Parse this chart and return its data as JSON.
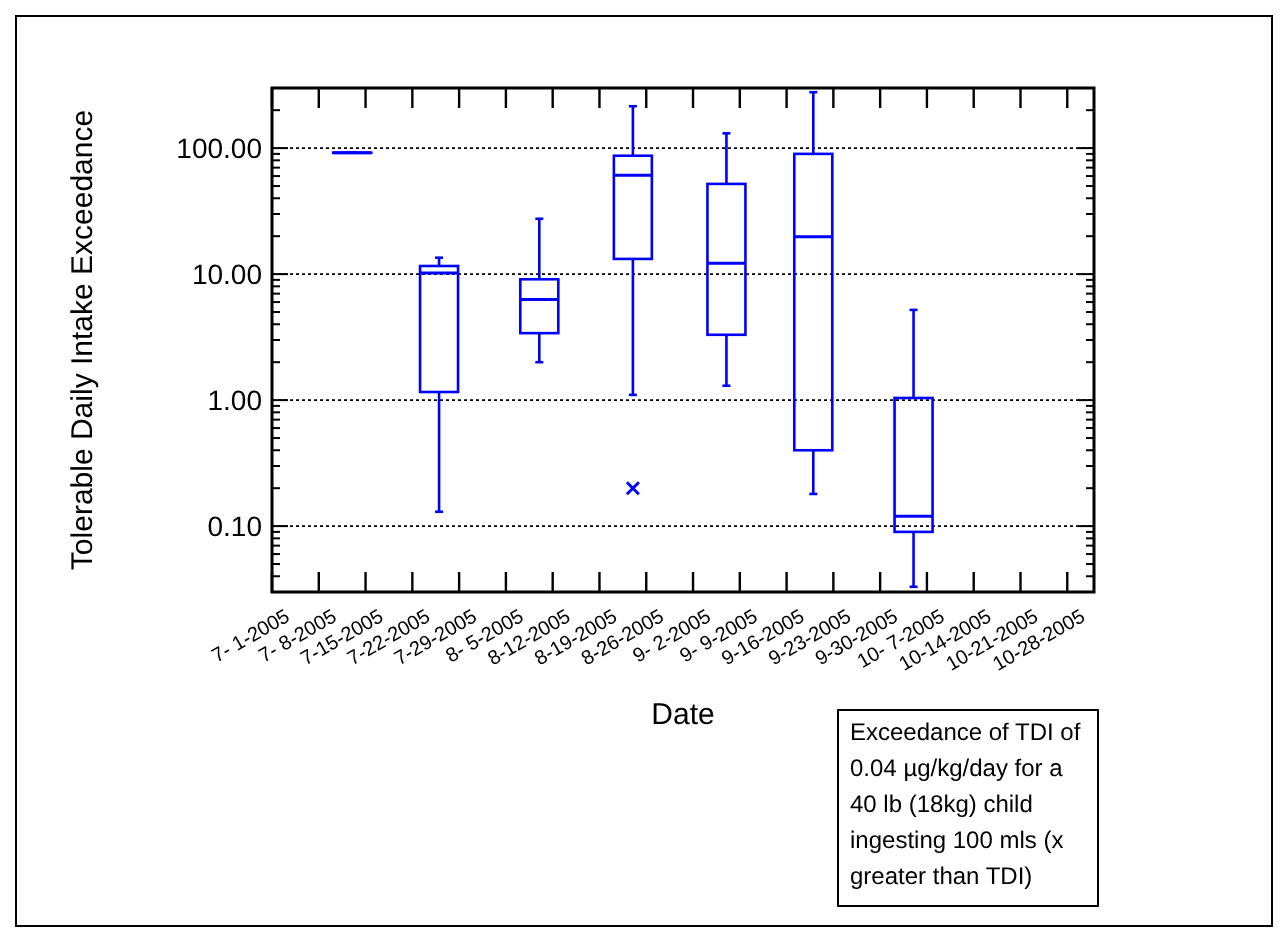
{
  "chart_data": {
    "type": "box",
    "xlabel": "Date",
    "ylabel": "Tolerable Daily Intake Exceedance",
    "log": true,
    "grid": "y",
    "marker": "cross",
    "xlim": [
      "2005-07-01",
      "2005-11-01"
    ],
    "xticks": [
      {
        "value": "2005-07-01",
        "label": "7- 1-2005"
      },
      {
        "value": "2005-07-08",
        "label": "7- 8-2005"
      },
      {
        "value": "2005-07-15",
        "label": "7-15-2005"
      },
      {
        "value": "2005-07-22",
        "label": "7-22-2005"
      },
      {
        "value": "2005-07-29",
        "label": "7-29-2005"
      },
      {
        "value": "2005-08-05",
        "label": "8- 5-2005"
      },
      {
        "value": "2005-08-12",
        "label": "8-12-2005"
      },
      {
        "value": "2005-08-19",
        "label": "8-19-2005"
      },
      {
        "value": "2005-08-26",
        "label": "8-26-2005"
      },
      {
        "value": "2005-09-02",
        "label": "9- 2-2005"
      },
      {
        "value": "2005-09-09",
        "label": "9- 9-2005"
      },
      {
        "value": "2005-09-16",
        "label": "9-16-2005"
      },
      {
        "value": "2005-09-23",
        "label": "9-23-2005"
      },
      {
        "value": "2005-09-30",
        "label": "9-30-2005"
      },
      {
        "value": "2005-10-07",
        "label": "10- 7-2005"
      },
      {
        "value": "2005-10-14",
        "label": "10-14-2005"
      },
      {
        "value": "2005-10-21",
        "label": "10-21-2005"
      },
      {
        "value": "2005-10-28",
        "label": "10-28-2005"
      }
    ],
    "ylim": [
      0.03,
      300
    ],
    "yticks": [
      {
        "value": 0.1,
        "label": "0.10"
      },
      {
        "value": 1,
        "label": "1.00"
      },
      {
        "value": 10,
        "label": "10.00"
      },
      {
        "value": 100,
        "label": "100.00"
      }
    ],
    "series": [
      {
        "color": "#0000ff",
        "x": [
          "2005-07-13",
          "2005-07-26",
          "2005-08-10",
          "2005-08-24",
          "2005-09-07",
          "2005-09-20",
          "2005-10-05"
        ],
        "boxes": [
          {
            "low": 92,
            "q1": 92,
            "median": 92,
            "q3": 92,
            "high": 92
          },
          {
            "low": 0.13,
            "q1": 1.16,
            "median": 10.2,
            "q3": 11.6,
            "high": 13.5
          },
          {
            "low": 2.0,
            "q1": 3.4,
            "median": 6.3,
            "q3": 9.1,
            "high": 27.5
          },
          {
            "low": 1.1,
            "q1": 13.2,
            "median": 61,
            "q3": 87,
            "high": 215,
            "outliers": [
              0.2
            ]
          },
          {
            "low": 1.3,
            "q1": 3.3,
            "median": 12.2,
            "q3": 52,
            "high": 131
          },
          {
            "low": 0.18,
            "q1": 0.4,
            "median": 19.8,
            "q3": 90,
            "high": 278
          },
          {
            "low": 0.033,
            "q1": 0.09,
            "median": 0.12,
            "q3": 1.04,
            "high": 5.2
          }
        ]
      }
    ],
    "annotations": [
      "Exceedance of TDI of 0.04 µg/kg/day for a 40 lb (18kg) child ingesting 100 mls (x greater than TDI)"
    ]
  }
}
